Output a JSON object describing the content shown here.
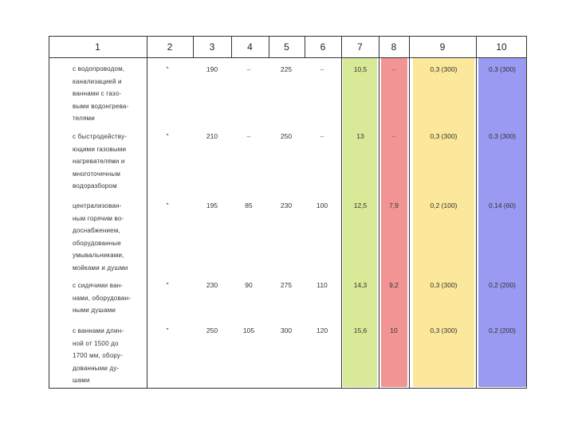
{
  "header": [
    "1",
    "2",
    "3",
    "4",
    "5",
    "6",
    "7",
    "8",
    "9",
    "10"
  ],
  "rows": [
    {
      "description": "с водопроводом,\nканализацией и\nваннами с газо-\nвыми водонгрева-\nтелями",
      "cells": [
        "\"",
        "190",
        "–",
        "225",
        "–",
        "10,5",
        "–",
        "0,3 (300)",
        "0,3 (300)"
      ]
    },
    {
      "description": "с быстродейству-\nющими газовыми\nнагревателями и\nмноготочечным\nводоразбором",
      "cells": [
        "\"",
        "210",
        "–",
        "250",
        "–",
        "13",
        "–",
        "0,3 (300)",
        "0,3 (300)"
      ]
    },
    {
      "description": "централизован-\nным горячим во-\nдоснабжением,\nоборудованные\nумывальниками,\nмойками и душми",
      "cells": [
        "\"",
        "195",
        "85",
        "230",
        "100",
        "12,5",
        "7,9",
        "0,2 (100)",
        "0,14 (60)"
      ]
    },
    {
      "description": "с сидячими ван-\nнами, оборудован-\nными душами",
      "cells": [
        "\"",
        "230",
        "90",
        "275",
        "110",
        "14,3",
        "9,2",
        "0,3 (300)",
        "0,2 (200)"
      ]
    },
    {
      "description": "с ваннами длин-\nной от 1500 до\n1700 мм, обору-\nдованными ду-\nшами",
      "cells": [
        "\"",
        "250",
        "105",
        "300",
        "120",
        "15,6",
        "10",
        "0,3 (300)",
        "0,2 (200)"
      ]
    }
  ],
  "colors": {
    "col7": "#d8ea98",
    "col8": "#f29493",
    "col9": "#fbe89a",
    "col10": "#9a9af2"
  }
}
